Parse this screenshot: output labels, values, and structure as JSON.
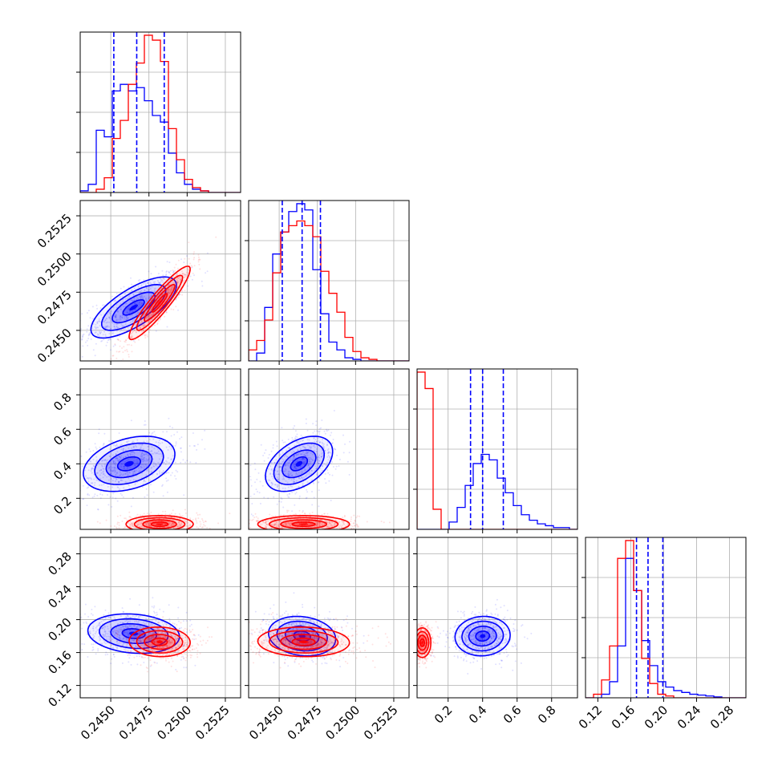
{
  "chart_data": {
    "type": "corner",
    "series": [
      {
        "name": "",
        "color": "#0000ff"
      },
      {
        "name": "",
        "color": "#ff0000"
      }
    ],
    "grid": true,
    "params": [
      {
        "range": [
          0.243,
          0.2535
        ],
        "ticks": [
          0.245,
          0.2475,
          0.25,
          0.2525
        ],
        "tick_labels": [
          "0.2450",
          "0.2475",
          "0.2500",
          "0.2525"
        ],
        "quantiles_blue": [
          0.2452,
          0.2467,
          0.2485
        ],
        "hist_blue": [
          0.01,
          0.05,
          0.38,
          0.34,
          0.62,
          0.66,
          0.62,
          0.64,
          0.56,
          0.47,
          0.43,
          0.24,
          0.12,
          0.05,
          0.02,
          0.01,
          0.0,
          0.0,
          0.0,
          0.0
        ],
        "hist_red": [
          0.0,
          0.0,
          0.02,
          0.09,
          0.33,
          0.44,
          0.66,
          0.79,
          0.96,
          0.93,
          0.8,
          0.39,
          0.2,
          0.08,
          0.03,
          0.01,
          0.0,
          0.0,
          0.0,
          0.0
        ]
      },
      {
        "range": [
          0.243,
          0.2535
        ],
        "ticks": [
          0.245,
          0.2475,
          0.25,
          0.2525
        ],
        "tick_labels": [
          "0.2450",
          "0.2475",
          "0.2500",
          "0.2525"
        ],
        "quantiles_blue": [
          0.2452,
          0.2465,
          0.2477
        ],
        "hist_blue": [
          0.0,
          0.05,
          0.34,
          0.68,
          0.82,
          0.95,
          1.0,
          0.96,
          0.58,
          0.3,
          0.12,
          0.07,
          0.02,
          0.01,
          0.0,
          0.0,
          0.0,
          0.0,
          0.0,
          0.0
        ],
        "hist_red": [
          0.07,
          0.13,
          0.26,
          0.56,
          0.82,
          0.86,
          0.89,
          0.86,
          0.79,
          0.57,
          0.43,
          0.31,
          0.15,
          0.06,
          0.02,
          0.01,
          0.0,
          0.0,
          0.0,
          0.0
        ]
      },
      {
        "range": [
          0.02,
          0.95
        ],
        "ticks": [
          0.2,
          0.4,
          0.6,
          0.8
        ],
        "tick_labels": [
          "0.2",
          "0.4",
          "0.6",
          "0.8"
        ],
        "quantiles_blue": [
          0.33,
          0.4,
          0.52
        ],
        "hist_blue": [
          0.0,
          0.0,
          0.0,
          0.0,
          0.04,
          0.12,
          0.24,
          0.36,
          0.41,
          0.38,
          0.28,
          0.2,
          0.13,
          0.08,
          0.05,
          0.03,
          0.02,
          0.01,
          0.01,
          0.0
        ],
        "hist_red": [
          0.86,
          0.77,
          0.11,
          0.0,
          0.0,
          0.0,
          0.0,
          0.0,
          0.0,
          0.0,
          0.0,
          0.0,
          0.0,
          0.0,
          0.0,
          0.0,
          0.0,
          0.0,
          0.0,
          0.0
        ]
      },
      {
        "range": [
          0.105,
          0.3
        ],
        "ticks": [
          0.12,
          0.16,
          0.2,
          0.24,
          0.28
        ],
        "tick_labels": [
          "0.12",
          "0.16",
          "0.20",
          "0.24",
          "0.28"
        ],
        "quantiles_blue": [
          0.167,
          0.181,
          0.199
        ],
        "hist_blue": [
          0.0,
          0.0,
          0.02,
          0.09,
          0.29,
          0.78,
          0.6,
          0.32,
          0.18,
          0.09,
          0.06,
          0.04,
          0.03,
          0.02,
          0.015,
          0.01,
          0.005,
          0.0,
          0.0,
          0.0
        ],
        "hist_red": [
          0.0,
          0.02,
          0.1,
          0.29,
          0.78,
          0.88,
          0.6,
          0.22,
          0.08,
          0.02,
          0.01,
          0.0,
          0.0,
          0.0,
          0.0,
          0.0,
          0.0,
          0.0,
          0.0,
          0.0
        ]
      }
    ],
    "pairs_2d": [
      {
        "row": 1,
        "col": 0,
        "blue": {
          "mean": [
            0.2465,
            0.2465
          ],
          "sd": [
            0.0014,
            0.001
          ],
          "rho": 0.72
        },
        "red": {
          "mean": [
            0.2482,
            0.2468
          ],
          "sd": [
            0.001,
            0.0012
          ],
          "rho": 0.92
        }
      },
      {
        "row": 2,
        "col": 0,
        "blue": {
          "mean": [
            0.2462,
            0.4
          ],
          "sd": [
            0.0015,
            0.08
          ],
          "rho": 0.35
        },
        "red": {
          "mean": [
            0.2482,
            0.05
          ],
          "sd": [
            0.0011,
            0.025
          ],
          "rho": 0.0
        }
      },
      {
        "row": 2,
        "col": 1,
        "blue": {
          "mean": [
            0.2463,
            0.4
          ],
          "sd": [
            0.0011,
            0.08
          ],
          "rho": 0.45
        },
        "red": {
          "mean": [
            0.2466,
            0.05
          ],
          "sd": [
            0.0015,
            0.025
          ],
          "rho": 0.0
        }
      },
      {
        "row": 3,
        "col": 0,
        "blue": {
          "mean": [
            0.2465,
            0.183
          ],
          "sd": [
            0.0015,
            0.012
          ],
          "rho": -0.15
        },
        "red": {
          "mean": [
            0.2482,
            0.173
          ],
          "sd": [
            0.001,
            0.009
          ],
          "rho": -0.05
        }
      },
      {
        "row": 3,
        "col": 1,
        "blue": {
          "mean": [
            0.2465,
            0.18
          ],
          "sd": [
            0.0011,
            0.012
          ],
          "rho": -0.15
        },
        "red": {
          "mean": [
            0.2466,
            0.173
          ],
          "sd": [
            0.0015,
            0.009
          ],
          "rho": -0.05
        }
      },
      {
        "row": 3,
        "col": 2,
        "blue": {
          "mean": [
            0.4,
            0.18
          ],
          "sd": [
            0.08,
            0.012
          ],
          "rho": 0.05
        },
        "red": {
          "mean": [
            0.05,
            0.172
          ],
          "sd": [
            0.025,
            0.009
          ],
          "rho": 0.0
        }
      }
    ]
  }
}
